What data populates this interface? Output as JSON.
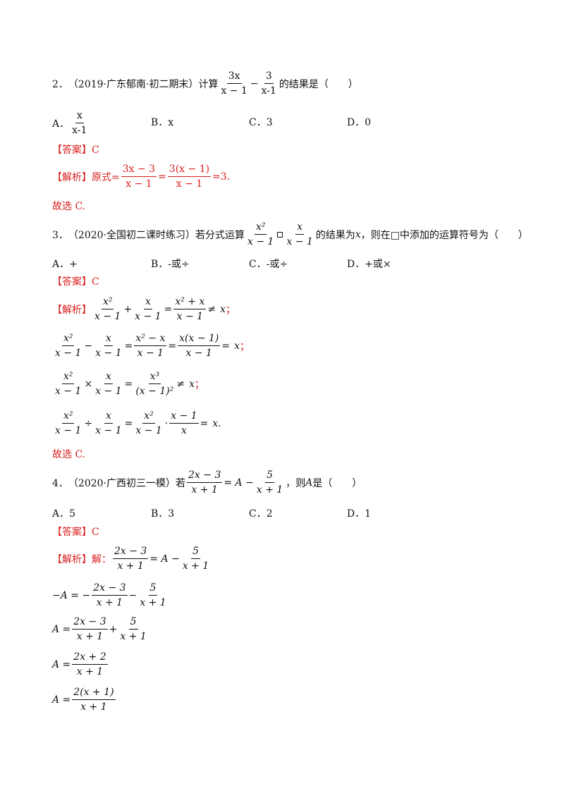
{
  "q2": {
    "num": "2．",
    "source": "（2019·广东郁南·初二期末）计算",
    "f1n": "3x",
    "f1d": "x − 1",
    "minus": "−",
    "f2n": "3",
    "f2d": "x-1",
    "suffix": "的结果是（　　）",
    "opts": [
      {
        "label": "A．",
        "num": "x",
        "den": "x-1"
      },
      {
        "label": "B．",
        "text": "x"
      },
      {
        "label": "C．",
        "text": "3"
      },
      {
        "label": "D．",
        "text": "0"
      }
    ],
    "answer_label": "【答案】C",
    "analysis_label": "【解析】",
    "analysis_prefix": "原式=",
    "a_f1n": "3x − 3",
    "a_f1d": "x − 1",
    "eq": "=",
    "a_f2n": "3(x − 1)",
    "a_f2d": "x − 1",
    "tail": "=3.",
    "conclusion": "故选 C."
  },
  "q3": {
    "num": "3．",
    "source": "（2020·全国初二课时练习）若分式运算",
    "f1n": "x²",
    "f1d": "x − 1",
    "f2n": "x",
    "f2d": "x − 1",
    "suffix": "的结果为",
    "var": "x",
    "suffix2": "，则在□中添加的运算符号为（　　）",
    "opts": [
      {
        "label": "A．",
        "text": "+"
      },
      {
        "label": "B．",
        "text": "-或÷"
      },
      {
        "label": "C．",
        "text": "-或÷"
      },
      {
        "label": "D．",
        "text": "+或×"
      }
    ],
    "answer_label": "【答案】C",
    "analysis_label": "【解析】",
    "l1": {
      "op": "+",
      "rn": "x² + x",
      "rd": "x − 1",
      "rel": "≠",
      "end": "x",
      "semi": "；"
    },
    "l2": {
      "op": "−",
      "m1n": "x² − x",
      "m1d": "x − 1",
      "m2n": "x(x − 1)",
      "m2d": "x − 1",
      "end": "x",
      "semi": "；"
    },
    "l3": {
      "op": "×",
      "rn": "x³",
      "rd": "(x − 1)²",
      "rel": "≠",
      "end": "x",
      "semi": "；"
    },
    "l4": {
      "op": "÷",
      "m1n": "x²",
      "m1d": "x − 1",
      "dot": "·",
      "m2n": "x − 1",
      "m2d": "x",
      "end": "x",
      "period": "."
    },
    "conclusion": "故选 C."
  },
  "q4": {
    "num": "4．",
    "source": "（2020·广西初三一模）若",
    "f1n": "2x − 3",
    "f1d": "x + 1",
    "eqA": "= A −",
    "f2n": "5",
    "f2d": "x + 1",
    "suffix": "，则",
    "var": "A",
    "suffix2": "是（　　）",
    "opts": [
      {
        "label": "A．",
        "text": "5"
      },
      {
        "label": "B．",
        "text": "3"
      },
      {
        "label": "C．",
        "text": "2"
      },
      {
        "label": "D．",
        "text": "1"
      }
    ],
    "answer_label": "【答案】C",
    "analysis_label": "【解析】",
    "solve": "解：",
    "s1": {
      "ln": "2x − 3",
      "ld": "x + 1",
      "mid": "= A −",
      "rn": "5",
      "rd": "x + 1"
    },
    "s2": {
      "lhs": "−A = −",
      "ln": "2x − 3",
      "ld": "x + 1",
      "op": "−",
      "rn": "5",
      "rd": "x + 1"
    },
    "s3": {
      "lhs": "A =",
      "ln": "2x − 3",
      "ld": "x + 1",
      "op": "+",
      "rn": "5",
      "rd": "x + 1"
    },
    "s4": {
      "lhs": "A =",
      "n": "2x + 2",
      "d": "x + 1"
    },
    "s5": {
      "lhs": "A =",
      "n": "2(x + 1)",
      "d": "x + 1"
    }
  }
}
